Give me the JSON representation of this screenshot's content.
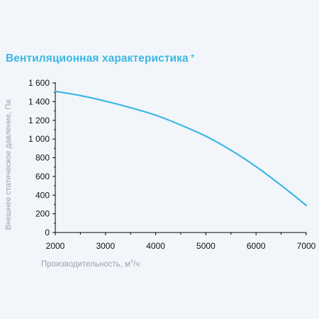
{
  "title": "Вентиляционная характеристика",
  "title_mark": "*",
  "colors": {
    "title": "#3db7e3",
    "curve": "#3db7e3",
    "axis": "#000000",
    "label": "#9aa3ad",
    "background": "#f2f6fa"
  },
  "chart_data": {
    "type": "line",
    "title": "Вентиляционная характеристика *",
    "xlabel": "Производительность, м³/ч",
    "xlabel_main": "Производительность, м",
    "xlabel_sup": "3",
    "xlabel_tail": "/ч",
    "ylabel": "Внешнее статическое давление, Па",
    "xlim": [
      2000,
      7000
    ],
    "ylim": [
      0,
      1600
    ],
    "x_ticks": [
      "2000",
      "3000",
      "4000",
      "5000",
      "6000",
      "7000"
    ],
    "y_ticks": [
      "0",
      "200",
      "400",
      "600",
      "800",
      "1 000",
      "1 200",
      "1 400",
      "1 600"
    ],
    "grid": false,
    "series": [
      {
        "x": [
          2000,
          2500,
          3000,
          3500,
          4000,
          4500,
          5000,
          5500,
          6000,
          6500,
          7000
        ],
        "y": [
          1510,
          1465,
          1405,
          1335,
          1255,
          1150,
          1030,
          880,
          705,
          505,
          290
        ]
      }
    ]
  }
}
